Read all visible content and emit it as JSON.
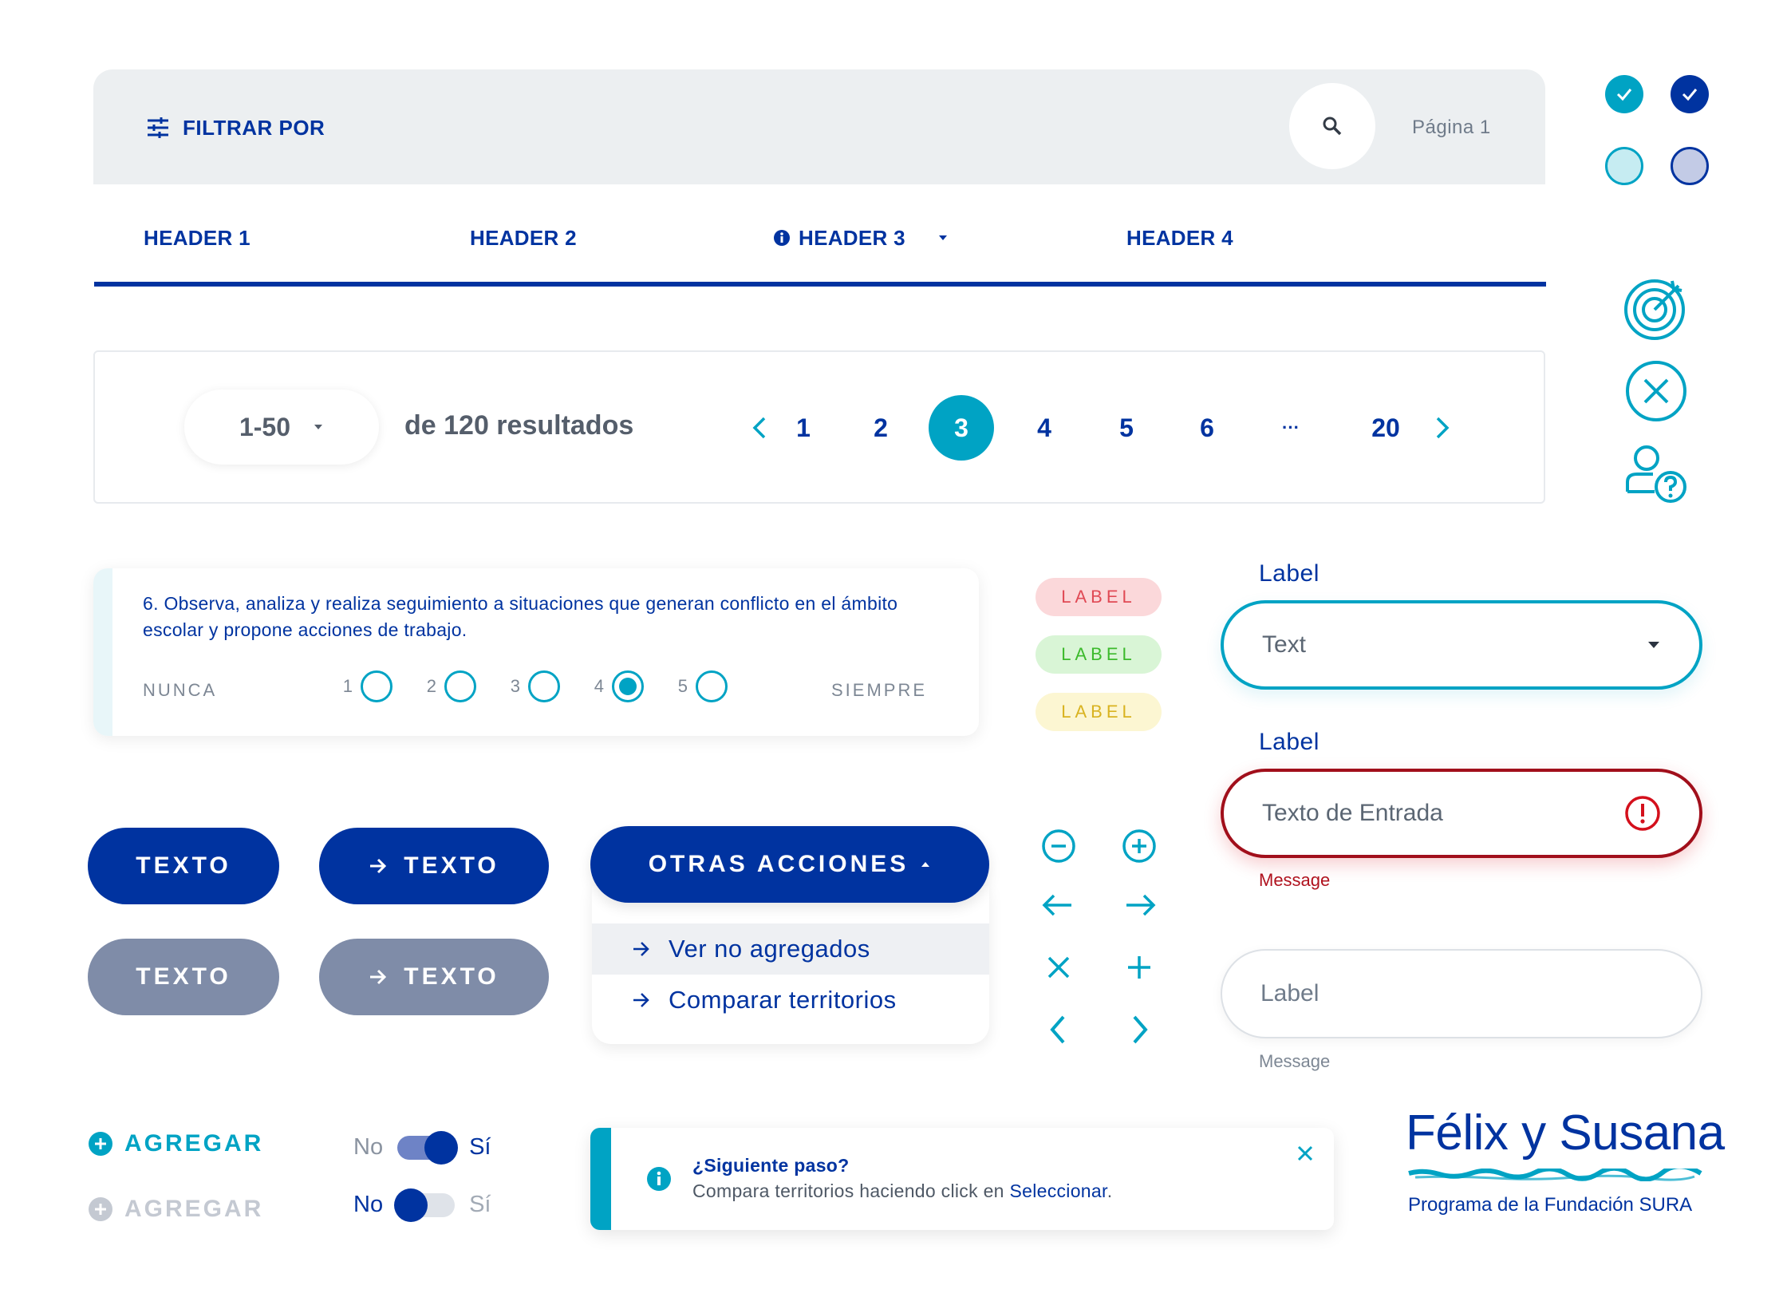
{
  "filter_bar": {
    "filter_label": "FILTRAR POR",
    "page_label": "Página 1",
    "icons": {
      "filter": "sliders-icon",
      "search": "search-icon"
    }
  },
  "table_headers": [
    {
      "label": "HEADER 1"
    },
    {
      "label": "HEADER 2"
    },
    {
      "label": "HEADER 3",
      "has_info_icon": true,
      "has_sort_icon": true
    },
    {
      "label": "HEADER 4"
    }
  ],
  "pagination": {
    "page_size": "1-50",
    "results_text": "de 120 resultados",
    "pages": [
      "1",
      "2",
      "3",
      "4",
      "5",
      "6",
      "···",
      "20"
    ],
    "current_page": "3"
  },
  "survey": {
    "question": "6. Observa, analiza y realiza seguimiento a situaciones que generan conflicto en el ámbito escolar y propone acciones de trabajo.",
    "min_label": "NUNCA",
    "max_label": "SIEMPRE",
    "options": [
      "1",
      "2",
      "3",
      "4",
      "5"
    ],
    "selected": "4"
  },
  "tags": [
    {
      "text": "LABEL",
      "bg": "#fbd8da",
      "color": "#e04a55"
    },
    {
      "text": "LABEL",
      "bg": "#d9f5d6",
      "color": "#3cba2c"
    },
    {
      "text": "LABEL",
      "bg": "#fcf6d2",
      "color": "#d9b320"
    }
  ],
  "inputs": {
    "select": {
      "label": "Label",
      "value": "Text"
    },
    "error": {
      "label": "Label",
      "value": "Texto de Entrada",
      "message": "Message"
    },
    "plain": {
      "placeholder": "Label",
      "message": "Message"
    }
  },
  "buttons": {
    "primary": "TEXTO",
    "primary_arrow": "TEXTO",
    "disabled": "TEXTO",
    "disabled_arrow": "TEXTO"
  },
  "dropdown": {
    "label": "OTRAS ACCIONES",
    "items": [
      "Ver no agregados",
      "Comparar territorios"
    ]
  },
  "agregar": {
    "active": "AGREGAR",
    "disabled": "AGREGAR"
  },
  "toggles": [
    {
      "off_label": "No",
      "on_label": "Sí",
      "state": "on"
    },
    {
      "off_label": "No",
      "on_label": "Sí",
      "state": "off"
    }
  ],
  "notification": {
    "title": "¿Siguiente paso?",
    "text": "Compara territorios haciendo click en ",
    "link": "Seleccionar",
    "text_end": "."
  },
  "logo": {
    "name": "Félix y Susana",
    "subtitle": "Programa de la Fundación SURA"
  },
  "colors": {
    "primary": "#0033a0",
    "accent": "#00a3c4",
    "error": "#a10f1b",
    "disabled": "#7f8ca8"
  }
}
